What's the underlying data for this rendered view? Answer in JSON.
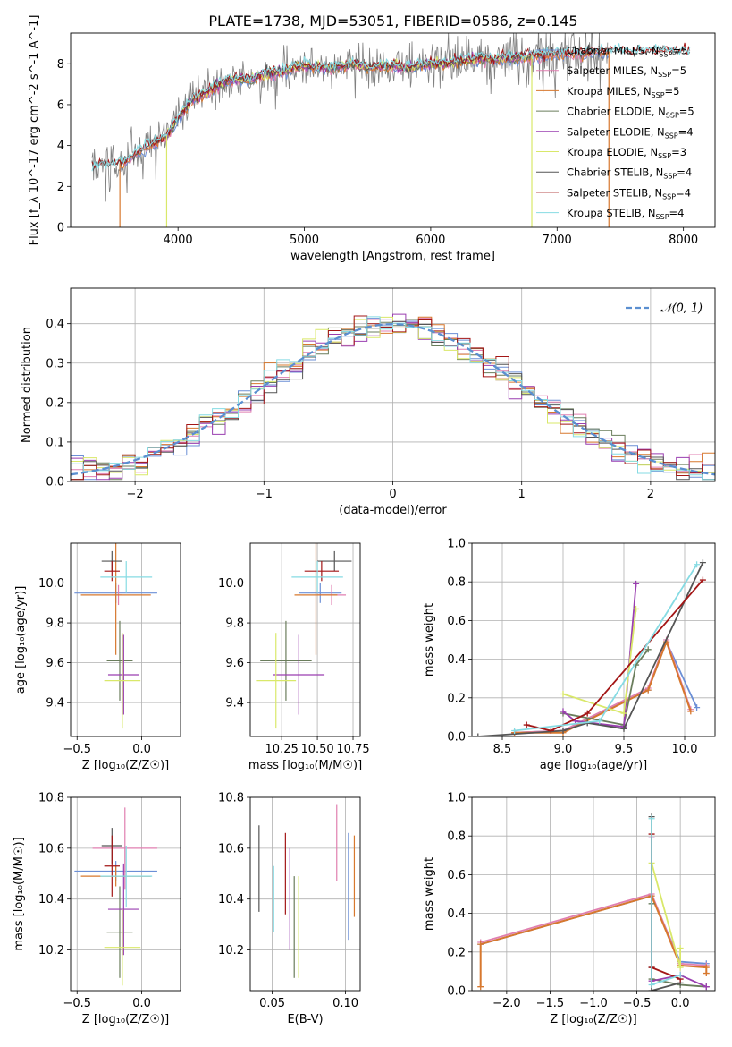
{
  "figure": {
    "title": "PLATE=1738, MJD=53051, FIBERID=0586, z=0.145"
  },
  "colors": {
    "Chabrier MILES": "#6b8fd6",
    "Salpeter MILES": "#e07fb0",
    "Kroupa MILES": "#d7782e",
    "Chabrier ELODIE": "#6a7d5c",
    "Salpeter ELODIE": "#9a3fb0",
    "Kroupa ELODIE": "#d9e86a",
    "Chabrier STELIB": "#555555",
    "Salpeter STELIB": "#a31616",
    "Kroupa STELIB": "#86dbe3",
    "data": "#808080",
    "normal": "#5b8fd0"
  },
  "chart_data": [
    {
      "id": "spectrum",
      "type": "line",
      "title": "PLATE=1738, MJD=53051, FIBERID=0586, z=0.145",
      "xlabel": "wavelength [Angstrom, rest frame]",
      "ylabel": "Flux [f_λ 10^-17 erg cm^-2 s^-1 A^-1]",
      "xlim": [
        3150,
        8250
      ],
      "ylim": [
        0,
        9.5
      ],
      "xticks": [
        4000,
        5000,
        6000,
        7000,
        8000
      ],
      "yticks": [
        0,
        2,
        4,
        6,
        8
      ],
      "legend": "top-right",
      "continuum_points": {
        "x": [
          3330,
          3400,
          3500,
          3600,
          3700,
          3800,
          3900,
          4000,
          4100,
          4200,
          4300,
          4400,
          4500,
          4600,
          4700,
          4800,
          4900,
          5000,
          5100,
          5200,
          5300,
          5400,
          5500,
          5600,
          5700,
          5800,
          5900,
          6000,
          6100,
          6200,
          6300,
          6400,
          6500,
          6600,
          6700,
          6800,
          6900,
          7000,
          7100,
          7200,
          7300,
          7400,
          7500,
          7600,
          7700,
          7800,
          7900,
          8050
        ],
        "y": [
          2.9,
          3.1,
          3.0,
          3.3,
          3.7,
          4.1,
          4.4,
          5.3,
          6.2,
          6.5,
          6.9,
          7.2,
          7.2,
          7.3,
          7.5,
          7.6,
          7.8,
          7.9,
          7.8,
          7.8,
          7.9,
          8.0,
          7.8,
          7.9,
          7.9,
          7.8,
          7.9,
          8.0,
          8.0,
          8.1,
          8.2,
          8.3,
          8.2,
          8.3,
          8.3,
          8.4,
          8.4,
          8.5,
          8.5,
          8.5,
          8.6,
          8.6,
          8.6,
          8.6,
          8.6,
          8.6,
          8.6,
          8.6
        ]
      },
      "series": [
        {
          "name": "Chabrier MILES, N_SSP=5",
          "label_pre": "Chabrier MILES, N",
          "label_n": "5",
          "color_key": "Chabrier MILES",
          "model": "MILES"
        },
        {
          "name": "Salpeter MILES, N_SSP=5",
          "label_pre": "Salpeter MILES, N",
          "label_n": "5",
          "color_key": "Salpeter MILES",
          "model": "MILES"
        },
        {
          "name": "Kroupa MILES, N_SSP=5",
          "label_pre": "Kroupa MILES, N",
          "label_n": "5",
          "color_key": "Kroupa MILES",
          "model": "MILES"
        },
        {
          "name": "Chabrier ELODIE, N_SSP=5",
          "label_pre": "Chabrier ELODIE, N",
          "label_n": "5",
          "color_key": "Chabrier ELODIE",
          "model": "ELODIE"
        },
        {
          "name": "Salpeter ELODIE, N_SSP=4",
          "label_pre": "Salpeter ELODIE, N",
          "label_n": "4",
          "color_key": "Salpeter ELODIE",
          "model": "ELODIE"
        },
        {
          "name": "Kroupa ELODIE, N_SSP=3",
          "label_pre": "Kroupa ELODIE, N",
          "label_n": "3",
          "color_key": "Kroupa ELODIE",
          "model": "ELODIE"
        },
        {
          "name": "Chabrier STELIB, N_SSP=4",
          "label_pre": "Chabrier STELIB, N",
          "label_n": "4",
          "color_key": "Chabrier STELIB",
          "model": "STELIB"
        },
        {
          "name": "Salpeter STELIB, N_SSP=4",
          "label_pre": "Salpeter STELIB, N",
          "label_n": "4",
          "color_key": "Salpeter STELIB",
          "model": "STELIB"
        },
        {
          "name": "Kroupa STELIB, N_SSP=4",
          "label_pre": "Kroupa STELIB, N",
          "label_n": "4",
          "color_key": "Kroupa STELIB",
          "model": "STELIB"
        }
      ],
      "model_ranges": {
        "MILES": [
          3540,
          7410
        ],
        "ELODIE": [
          3910,
          6800
        ],
        "STELIB": [
          3320,
          8050
        ]
      }
    },
    {
      "id": "residuals",
      "type": "line",
      "xlabel": "(data-model)/error",
      "ylabel": "Normed distribution",
      "xlim": [
        -2.5,
        2.5
      ],
      "ylim": [
        0,
        0.49
      ],
      "xticks": [
        -2,
        -1,
        0,
        1,
        2
      ],
      "yticks": [
        0.0,
        0.1,
        0.2,
        0.3,
        0.4
      ],
      "grid": true,
      "legend": "top-right",
      "normal_label": "𝒩(0, 1)",
      "bin_width": 0.1,
      "bin_start": -2.5
    },
    {
      "id": "age-vs-Z",
      "type": "scatter",
      "xlabel": "Z [log₁₀(Z/Z☉)]",
      "ylabel": "age  [log₁₀(age/yr)]",
      "xlim": [
        -0.55,
        0.3
      ],
      "ylim": [
        9.23,
        10.2
      ],
      "xticks": [
        -0.5,
        0.0
      ],
      "yticks": [
        9.4,
        9.6,
        9.8,
        10.0
      ],
      "grid": true,
      "points": [
        {
          "key": "Chabrier MILES",
          "x": -0.2,
          "y": 9.95,
          "xerr": 0.32,
          "yerr": 0.05
        },
        {
          "key": "Salpeter MILES",
          "x": -0.18,
          "y": 9.94,
          "xerr": 0.03,
          "yerr": 0.05
        },
        {
          "key": "Kroupa MILES",
          "x": -0.2,
          "y": 9.94,
          "xerr": 0.27,
          "yerr": 0.3
        },
        {
          "key": "Chabrier ELODIE",
          "x": -0.17,
          "y": 9.61,
          "xerr": 0.1,
          "yerr": 0.2
        },
        {
          "key": "Salpeter ELODIE",
          "x": -0.14,
          "y": 9.54,
          "xerr": 0.12,
          "yerr": 0.2
        },
        {
          "key": "Kroupa ELODIE",
          "x": -0.15,
          "y": 9.51,
          "xerr": 0.14,
          "yerr": 0.24
        },
        {
          "key": "Chabrier STELIB",
          "x": -0.23,
          "y": 10.11,
          "xerr": 0.08,
          "yerr": 0.05
        },
        {
          "key": "Salpeter STELIB",
          "x": -0.23,
          "y": 10.06,
          "xerr": 0.06,
          "yerr": 0.05
        },
        {
          "key": "Kroupa STELIB",
          "x": -0.12,
          "y": 10.03,
          "xerr": 0.2,
          "yerr": 0.08
        }
      ]
    },
    {
      "id": "age-vs-mass",
      "type": "scatter",
      "xlabel": "mass [log₁₀(M/M☉)]",
      "ylabel": "",
      "xlim": [
        10.03,
        10.8
      ],
      "ylim": [
        9.23,
        10.2
      ],
      "xticks": [
        10.25,
        10.5,
        10.75
      ],
      "yticks": [
        9.4,
        9.6,
        9.8,
        10.0
      ],
      "grid": true,
      "points": [
        {
          "key": "Chabrier MILES",
          "x": 10.52,
          "y": 9.95,
          "xerr": 0.15,
          "yerr": 0.05
        },
        {
          "key": "Salpeter MILES",
          "x": 10.6,
          "y": 9.94,
          "xerr": 0.1,
          "yerr": 0.05
        },
        {
          "key": "Kroupa MILES",
          "x": 10.49,
          "y": 9.94,
          "xerr": 0.15,
          "yerr": 0.3
        },
        {
          "key": "Chabrier ELODIE",
          "x": 10.28,
          "y": 9.61,
          "xerr": 0.18,
          "yerr": 0.2
        },
        {
          "key": "Salpeter ELODIE",
          "x": 10.37,
          "y": 9.54,
          "xerr": 0.18,
          "yerr": 0.2
        },
        {
          "key": "Kroupa ELODIE",
          "x": 10.21,
          "y": 9.51,
          "xerr": 0.14,
          "yerr": 0.24
        },
        {
          "key": "Chabrier STELIB",
          "x": 10.62,
          "y": 10.11,
          "xerr": 0.12,
          "yerr": 0.05
        },
        {
          "key": "Salpeter STELIB",
          "x": 10.53,
          "y": 10.06,
          "xerr": 0.12,
          "yerr": 0.05
        },
        {
          "key": "Kroupa STELIB",
          "x": 10.5,
          "y": 10.03,
          "xerr": 0.18,
          "yerr": 0.08
        }
      ]
    },
    {
      "id": "weight-vs-age",
      "type": "line",
      "xlabel": "age  [log₁₀(age/yr)]",
      "ylabel": "mass weight",
      "xlim": [
        8.25,
        10.25
      ],
      "ylim": [
        0.0,
        1.0
      ],
      "xticks": [
        8.5,
        9.0,
        9.5,
        10.0
      ],
      "yticks": [
        0.0,
        0.2,
        0.4,
        0.6,
        0.8,
        1.0
      ],
      "grid": true,
      "series": [
        {
          "key": "Chabrier MILES",
          "x": [
            8.6,
            9.0,
            9.7,
            9.85,
            10.1
          ],
          "y": [
            0.02,
            0.03,
            0.24,
            0.49,
            0.15
          ]
        },
        {
          "key": "Salpeter MILES",
          "x": [
            8.6,
            9.0,
            9.7,
            9.85,
            10.05
          ],
          "y": [
            0.02,
            0.03,
            0.25,
            0.5,
            0.14
          ]
        },
        {
          "key": "Kroupa MILES",
          "x": [
            8.6,
            9.0,
            9.7,
            9.85,
            10.05
          ],
          "y": [
            0.02,
            0.02,
            0.24,
            0.49,
            0.13
          ]
        },
        {
          "key": "Chabrier ELODIE",
          "x": [
            9.0,
            9.5,
            9.6,
            9.7
          ],
          "y": [
            0.12,
            0.06,
            0.37,
            0.45
          ]
        },
        {
          "key": "Salpeter ELODIE",
          "x": [
            9.0,
            9.1,
            9.5,
            9.6
          ],
          "y": [
            0.13,
            0.08,
            0.05,
            0.79
          ]
        },
        {
          "key": "Kroupa ELODIE",
          "x": [
            9.0,
            9.5,
            9.6
          ],
          "y": [
            0.22,
            0.12,
            0.66
          ]
        },
        {
          "key": "Chabrier STELIB",
          "x": [
            8.3,
            9.0,
            9.2,
            9.5,
            10.15
          ],
          "y": [
            0.0,
            0.03,
            0.07,
            0.04,
            0.9
          ]
        },
        {
          "key": "Salpeter STELIB",
          "x": [
            8.7,
            8.9,
            9.2,
            10.15
          ],
          "y": [
            0.06,
            0.03,
            0.12,
            0.81
          ]
        },
        {
          "key": "Kroupa STELIB",
          "x": [
            8.6,
            9.3,
            10.1
          ],
          "y": [
            0.03,
            0.08,
            0.89
          ]
        }
      ]
    },
    {
      "id": "mass-vs-Z",
      "type": "scatter",
      "xlabel": "Z [log₁₀(Z/Z☉)]",
      "ylabel": "mass [log₁₀(M/M☉)]",
      "xlim": [
        -0.55,
        0.3
      ],
      "ylim": [
        10.04,
        10.8
      ],
      "xticks": [
        -0.5,
        0.0
      ],
      "yticks": [
        10.2,
        10.4,
        10.6,
        10.8
      ],
      "grid": true,
      "points": [
        {
          "key": "Chabrier MILES",
          "x": -0.2,
          "y": 10.51,
          "xerr": 0.32,
          "yerr": 0.04
        },
        {
          "key": "Salpeter MILES",
          "x": -0.13,
          "y": 10.6,
          "xerr": 0.25,
          "yerr": 0.16
        },
        {
          "key": "Kroupa MILES",
          "x": -0.2,
          "y": 10.49,
          "xerr": 0.27,
          "yerr": 0.04
        },
        {
          "key": "Chabrier ELODIE",
          "x": -0.17,
          "y": 10.27,
          "xerr": 0.1,
          "yerr": 0.18
        },
        {
          "key": "Salpeter ELODIE",
          "x": -0.14,
          "y": 10.36,
          "xerr": 0.12,
          "yerr": 0.18
        },
        {
          "key": "Kroupa ELODIE",
          "x": -0.15,
          "y": 10.21,
          "xerr": 0.14,
          "yerr": 0.15
        },
        {
          "key": "Chabrier STELIB",
          "x": -0.23,
          "y": 10.61,
          "xerr": 0.08,
          "yerr": 0.07
        },
        {
          "key": "Salpeter STELIB",
          "x": -0.23,
          "y": 10.53,
          "xerr": 0.06,
          "yerr": 0.12
        },
        {
          "key": "Kroupa STELIB",
          "x": -0.12,
          "y": 10.49,
          "xerr": 0.2,
          "yerr": 0.12
        }
      ]
    },
    {
      "id": "mass-vs-ebv",
      "type": "scatter",
      "xlabel": "E(B-V)",
      "ylabel": "",
      "xlim": [
        0.035,
        0.11
      ],
      "ylim": [
        10.04,
        10.8
      ],
      "xticks": [
        0.05,
        0.1
      ],
      "yticks": [
        10.2,
        10.4,
        10.6,
        10.8
      ],
      "grid": true,
      "points": [
        {
          "key": "Chabrier STELIB",
          "x": 0.041,
          "y": 10.52,
          "yerr": 0.17
        },
        {
          "key": "Kroupa STELIB",
          "x": 0.051,
          "y": 10.4,
          "yerr": 0.13
        },
        {
          "key": "Salpeter STELIB",
          "x": 0.059,
          "y": 10.5,
          "yerr": 0.16
        },
        {
          "key": "Salpeter ELODIE",
          "x": 0.062,
          "y": 10.4,
          "yerr": 0.2
        },
        {
          "key": "Chabrier ELODIE",
          "x": 0.065,
          "y": 10.29,
          "yerr": 0.2
        },
        {
          "key": "Kroupa ELODIE",
          "x": 0.068,
          "y": 10.29,
          "yerr": 0.2
        },
        {
          "key": "Salpeter MILES",
          "x": 0.094,
          "y": 10.62,
          "yerr": 0.15
        },
        {
          "key": "Chabrier MILES",
          "x": 0.102,
          "y": 10.45,
          "yerr": 0.21
        },
        {
          "key": "Kroupa MILES",
          "x": 0.106,
          "y": 10.49,
          "yerr": 0.16
        }
      ]
    },
    {
      "id": "weight-vs-Z",
      "type": "line",
      "xlabel": "Z [log₁₀(Z/Z☉)]",
      "ylabel": "mass weight",
      "xlim": [
        -2.4,
        0.4
      ],
      "ylim": [
        0.0,
        1.0
      ],
      "xticks": [
        -2.0,
        -1.5,
        -1.0,
        -0.5,
        0.0
      ],
      "yticks": [
        0.0,
        0.2,
        0.4,
        0.6,
        0.8,
        1.0
      ],
      "grid": true,
      "series": [
        {
          "key": "Chabrier MILES",
          "x": [
            -2.3,
            -0.33,
            0.0,
            0.3
          ],
          "y": [
            0.24,
            0.49,
            0.15,
            0.14
          ]
        },
        {
          "key": "Salpeter MILES",
          "x": [
            -2.3,
            -0.33,
            0.0,
            0.3
          ],
          "y": [
            0.25,
            0.5,
            0.14,
            0.13
          ]
        },
        {
          "key": "Kroupa MILES",
          "x": [
            -2.3,
            -2.3,
            -0.33,
            0.0,
            0.3,
            0.3
          ],
          "y": [
            0.02,
            0.24,
            0.49,
            0.13,
            0.12,
            0.09
          ]
        },
        {
          "key": "Chabrier ELODIE",
          "x": [
            -0.33,
            -0.33,
            0.0,
            0.3
          ],
          "y": [
            0.45,
            0.06,
            0.03,
            0.02
          ]
        },
        {
          "key": "Salpeter ELODIE",
          "x": [
            -0.33,
            -0.33,
            0.0,
            0.3
          ],
          "y": [
            0.79,
            0.05,
            0.08,
            0.02
          ]
        },
        {
          "key": "Kroupa ELODIE",
          "x": [
            -0.33,
            0.0,
            0.0
          ],
          "y": [
            0.66,
            0.12,
            0.22
          ]
        },
        {
          "key": "Chabrier STELIB",
          "x": [
            -0.33,
            -0.33,
            -0.33,
            0.0
          ],
          "y": [
            0.9,
            0.12,
            0.0,
            0.04
          ]
        },
        {
          "key": "Salpeter STELIB",
          "x": [
            -0.33,
            -0.33,
            0.0
          ],
          "y": [
            0.81,
            0.12,
            0.06
          ]
        },
        {
          "key": "Kroupa STELIB",
          "x": [
            -0.33,
            -0.33,
            0.0
          ],
          "y": [
            0.89,
            0.03,
            0.08
          ]
        }
      ]
    }
  ]
}
